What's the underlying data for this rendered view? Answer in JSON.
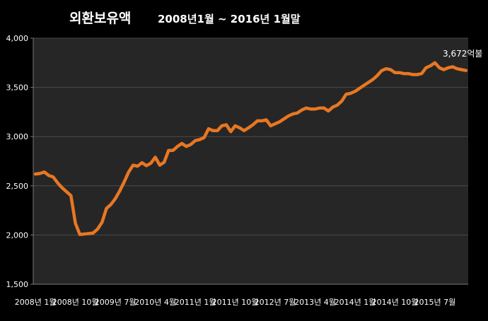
{
  "chart_data": {
    "type": "line",
    "title": "외환보유액",
    "subtitle": "2008년1월 ~ 2016년 1월말",
    "xlabel": "",
    "ylabel": "",
    "ylim": [
      1500,
      4000
    ],
    "y_ticks": [
      "1,500",
      "2,000",
      "2,500",
      "3,000",
      "3,500",
      "4,000"
    ],
    "x_tick_labels": [
      "2008년 1월",
      "2008년 10월",
      "2009년 7월",
      "2010년 4월",
      "2011년 1월",
      "2011년 10월",
      "2012년 7월",
      "2013년 4월",
      "2014년 1월",
      "2014년 10월",
      "2015년 7월"
    ],
    "grid": true,
    "line_color": "#E87722",
    "background": "#000000",
    "plot_background": "#262626",
    "grid_color": "#4a4a4a",
    "annotation": "3,672억불",
    "series": [
      {
        "values": [
          2620,
          2625,
          2640,
          2605,
          2590,
          2530,
          2480,
          2440,
          2400,
          2120,
          2005,
          2010,
          2015,
          2020,
          2060,
          2130,
          2270,
          2310,
          2370,
          2450,
          2540,
          2640,
          2710,
          2700,
          2735,
          2705,
          2730,
          2790,
          2710,
          2740,
          2860,
          2860,
          2900,
          2930,
          2900,
          2920,
          2960,
          2970,
          2990,
          3080,
          3060,
          3060,
          3110,
          3120,
          3050,
          3110,
          3090,
          3060,
          3090,
          3120,
          3160,
          3160,
          3170,
          3110,
          3130,
          3150,
          3180,
          3210,
          3230,
          3240,
          3270,
          3290,
          3280,
          3280,
          3290,
          3290,
          3260,
          3300,
          3320,
          3360,
          3430,
          3440,
          3460,
          3490,
          3520,
          3550,
          3580,
          3620,
          3670,
          3690,
          3680,
          3650,
          3650,
          3640,
          3640,
          3630,
          3630,
          3640,
          3700,
          3720,
          3750,
          3700,
          3680,
          3700,
          3710,
          3690,
          3680,
          3672
        ]
      }
    ]
  }
}
